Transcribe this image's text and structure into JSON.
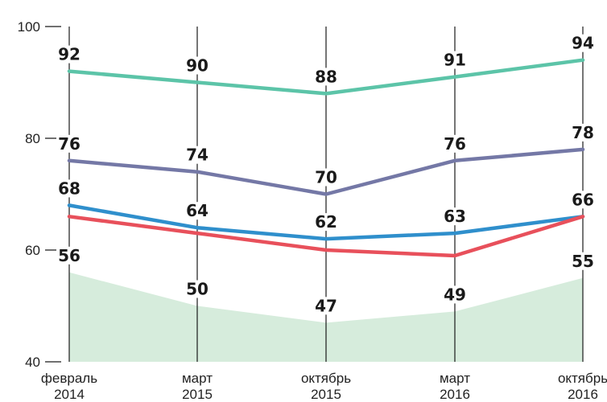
{
  "chart_data": {
    "type": "line",
    "categories": [
      [
        "февраль",
        "2014"
      ],
      [
        "март",
        "2015"
      ],
      [
        "октябрь",
        "2015"
      ],
      [
        "март",
        "2016"
      ],
      [
        "октябрь",
        "2016"
      ]
    ],
    "ylim": [
      40,
      100
    ],
    "yticks": [
      "40",
      "60",
      "80",
      "100"
    ],
    "series": [
      {
        "values": [
          92,
          90,
          88,
          91,
          94
        ],
        "labels": [
          "92",
          "90",
          "88",
          "91",
          "94"
        ],
        "color": "#5cc4a8",
        "style": "line"
      },
      {
        "values": [
          76,
          74,
          70,
          76,
          78
        ],
        "labels": [
          "76",
          "74",
          "70",
          "76",
          "78"
        ],
        "color": "#7478a6",
        "style": "line"
      },
      {
        "values": [
          68,
          64,
          62,
          63,
          66
        ],
        "labels": [
          "68",
          "64",
          "62",
          "63",
          "66"
        ],
        "color": "#2f8fcc",
        "style": "line"
      },
      {
        "values": [
          66,
          63,
          60,
          59,
          66
        ],
        "labels": [],
        "color": "#e8505b",
        "style": "line"
      },
      {
        "values": [
          56,
          50,
          47,
          49,
          55
        ],
        "labels": [
          "56",
          "50",
          "47",
          "49",
          "55"
        ],
        "color": "#d6ecdc",
        "style": "area"
      }
    ]
  }
}
